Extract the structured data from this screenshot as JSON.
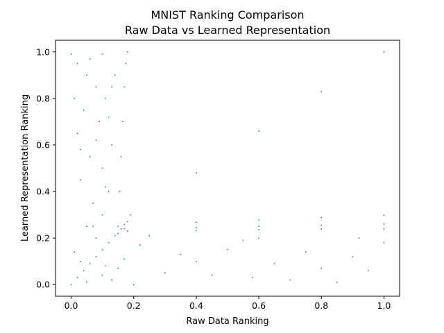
{
  "chart_data": {
    "type": "scatter",
    "title_lines": [
      "MNIST Ranking Comparison",
      "Raw Data vs Learned Representation"
    ],
    "xlabel": "Raw Data Ranking",
    "ylabel": "Learned Representation Ranking",
    "xlim": [
      -0.05,
      1.05
    ],
    "ylim": [
      -0.05,
      1.05
    ],
    "xticks": [
      0.0,
      0.2,
      0.4,
      0.6,
      0.8,
      1.0
    ],
    "xtick_labels": [
      "0.0",
      "0.2",
      "0.4",
      "0.6",
      "0.8",
      "1.0"
    ],
    "yticks": [
      0.0,
      0.2,
      0.4,
      0.6,
      0.8,
      1.0
    ],
    "ytick_labels": [
      "0.0",
      "0.2",
      "0.4",
      "0.6",
      "0.8",
      "1.0"
    ],
    "grid": false,
    "legend": "none",
    "marker_color": "#1f77b4",
    "series": [
      {
        "points": [
          [
            0.0,
            0.99
          ],
          [
            0.02,
            0.95
          ],
          [
            0.05,
            0.9
          ],
          [
            0.08,
            0.85
          ],
          [
            0.11,
            0.8
          ],
          [
            0.04,
            0.75
          ],
          [
            0.09,
            0.7
          ],
          [
            0.02,
            0.65
          ],
          [
            0.13,
            0.6
          ],
          [
            0.06,
            0.55
          ],
          [
            0.1,
            0.5
          ],
          [
            0.03,
            0.45
          ],
          [
            0.12,
            0.4
          ],
          [
            0.07,
            0.35
          ],
          [
            0.1,
            0.3
          ],
          [
            0.05,
            0.25
          ],
          [
            0.14,
            0.9
          ],
          [
            0.01,
            0.8
          ],
          [
            0.08,
            0.62
          ],
          [
            0.12,
            0.72
          ],
          [
            0.06,
            0.97
          ],
          [
            0.1,
            0.99
          ],
          [
            0.13,
            0.85
          ],
          [
            0.03,
            0.58
          ],
          [
            0.11,
            0.42
          ]
        ]
      },
      {
        "points": [
          [
            0.15,
            0.25
          ],
          [
            0.155,
            0.4
          ],
          [
            0.16,
            0.55
          ],
          [
            0.165,
            0.7
          ],
          [
            0.17,
            0.85
          ],
          [
            0.175,
            0.95
          ],
          [
            0.18,
            1.0
          ]
        ]
      },
      {
        "points": [
          [
            0.15,
            0.22
          ],
          [
            0.19,
            0.3
          ],
          [
            0.4,
            0.48
          ],
          [
            0.6,
            0.66
          ],
          [
            0.8,
            0.83
          ],
          [
            1.0,
            1.0
          ]
        ]
      },
      {
        "points": [
          [
            0.17,
            0.258
          ],
          [
            0.4,
            0.268
          ],
          [
            0.6,
            0.278
          ],
          [
            0.8,
            0.288
          ],
          [
            1.0,
            0.298
          ]
        ]
      },
      {
        "points": [
          [
            0.17,
            0.24
          ],
          [
            0.4,
            0.245
          ],
          [
            0.6,
            0.25
          ],
          [
            0.8,
            0.255
          ],
          [
            1.0,
            0.26
          ]
        ]
      },
      {
        "points": [
          [
            0.18,
            0.23
          ],
          [
            0.4,
            0.232
          ],
          [
            0.6,
            0.235
          ],
          [
            0.8,
            0.238
          ],
          [
            1.0,
            0.24
          ]
        ]
      },
      {
        "points": [
          [
            0.2,
            0.0
          ],
          [
            0.3,
            0.05
          ],
          [
            0.4,
            0.1
          ],
          [
            0.5,
            0.15
          ],
          [
            0.6,
            0.2
          ],
          [
            0.7,
            0.02
          ],
          [
            0.8,
            0.07
          ],
          [
            0.9,
            0.12
          ],
          [
            1.0,
            0.18
          ],
          [
            0.25,
            0.21
          ],
          [
            0.35,
            0.13
          ],
          [
            0.45,
            0.04
          ],
          [
            0.55,
            0.19
          ],
          [
            0.65,
            0.09
          ],
          [
            0.75,
            0.14
          ],
          [
            0.85,
            0.01
          ],
          [
            0.95,
            0.06
          ],
          [
            0.22,
            0.17
          ],
          [
            0.58,
            0.03
          ],
          [
            0.92,
            0.2
          ]
        ]
      },
      {
        "points": [
          [
            0.0,
            0.0
          ],
          [
            0.02,
            0.03
          ],
          [
            0.04,
            0.06
          ],
          [
            0.06,
            0.09
          ],
          [
            0.08,
            0.12
          ],
          [
            0.1,
            0.15
          ],
          [
            0.12,
            0.18
          ],
          [
            0.14,
            0.21
          ],
          [
            0.16,
            0.24
          ],
          [
            0.18,
            0.27
          ],
          [
            0.05,
            0.01
          ],
          [
            0.1,
            0.04
          ],
          [
            0.15,
            0.07
          ],
          [
            0.03,
            0.1
          ],
          [
            0.08,
            0.2
          ],
          [
            0.13,
            0.02
          ],
          [
            0.01,
            0.14
          ],
          [
            0.17,
            0.11
          ],
          [
            0.07,
            0.25
          ],
          [
            0.11,
            0.08
          ]
        ]
      }
    ]
  }
}
